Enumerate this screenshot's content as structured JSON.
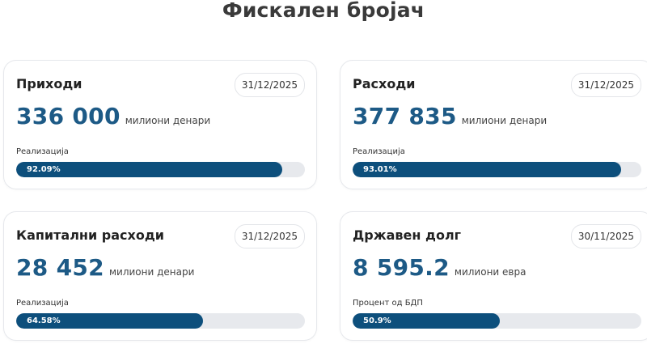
{
  "page_title": "Фискален бројач",
  "colors": {
    "accent": "#1d5a86",
    "bar_fill": "#0d4f7c",
    "bar_track": "#e7e9ed"
  },
  "cards": [
    {
      "title": "Приходи",
      "date": "31/12/2025",
      "value": "336 000",
      "unit": "милиони денари",
      "bar_label": "Реализација",
      "percent_text": "92.09%",
      "percent": 92.09
    },
    {
      "title": "Расходи",
      "date": "31/12/2025",
      "value": "377 835",
      "unit": "милиони денари",
      "bar_label": "Реализација",
      "percent_text": "93.01%",
      "percent": 93.01
    },
    {
      "title": "Капитални расходи",
      "date": "31/12/2025",
      "value": "28 452",
      "unit": "милиони денари",
      "bar_label": "Реализација",
      "percent_text": "64.58%",
      "percent": 64.58
    },
    {
      "title": "Државен долг",
      "date": "30/11/2025",
      "value": "8 595.2",
      "unit": "милиони евра",
      "bar_label": "Процент од БДП",
      "percent_text": "50.9%",
      "percent": 50.9
    }
  ]
}
